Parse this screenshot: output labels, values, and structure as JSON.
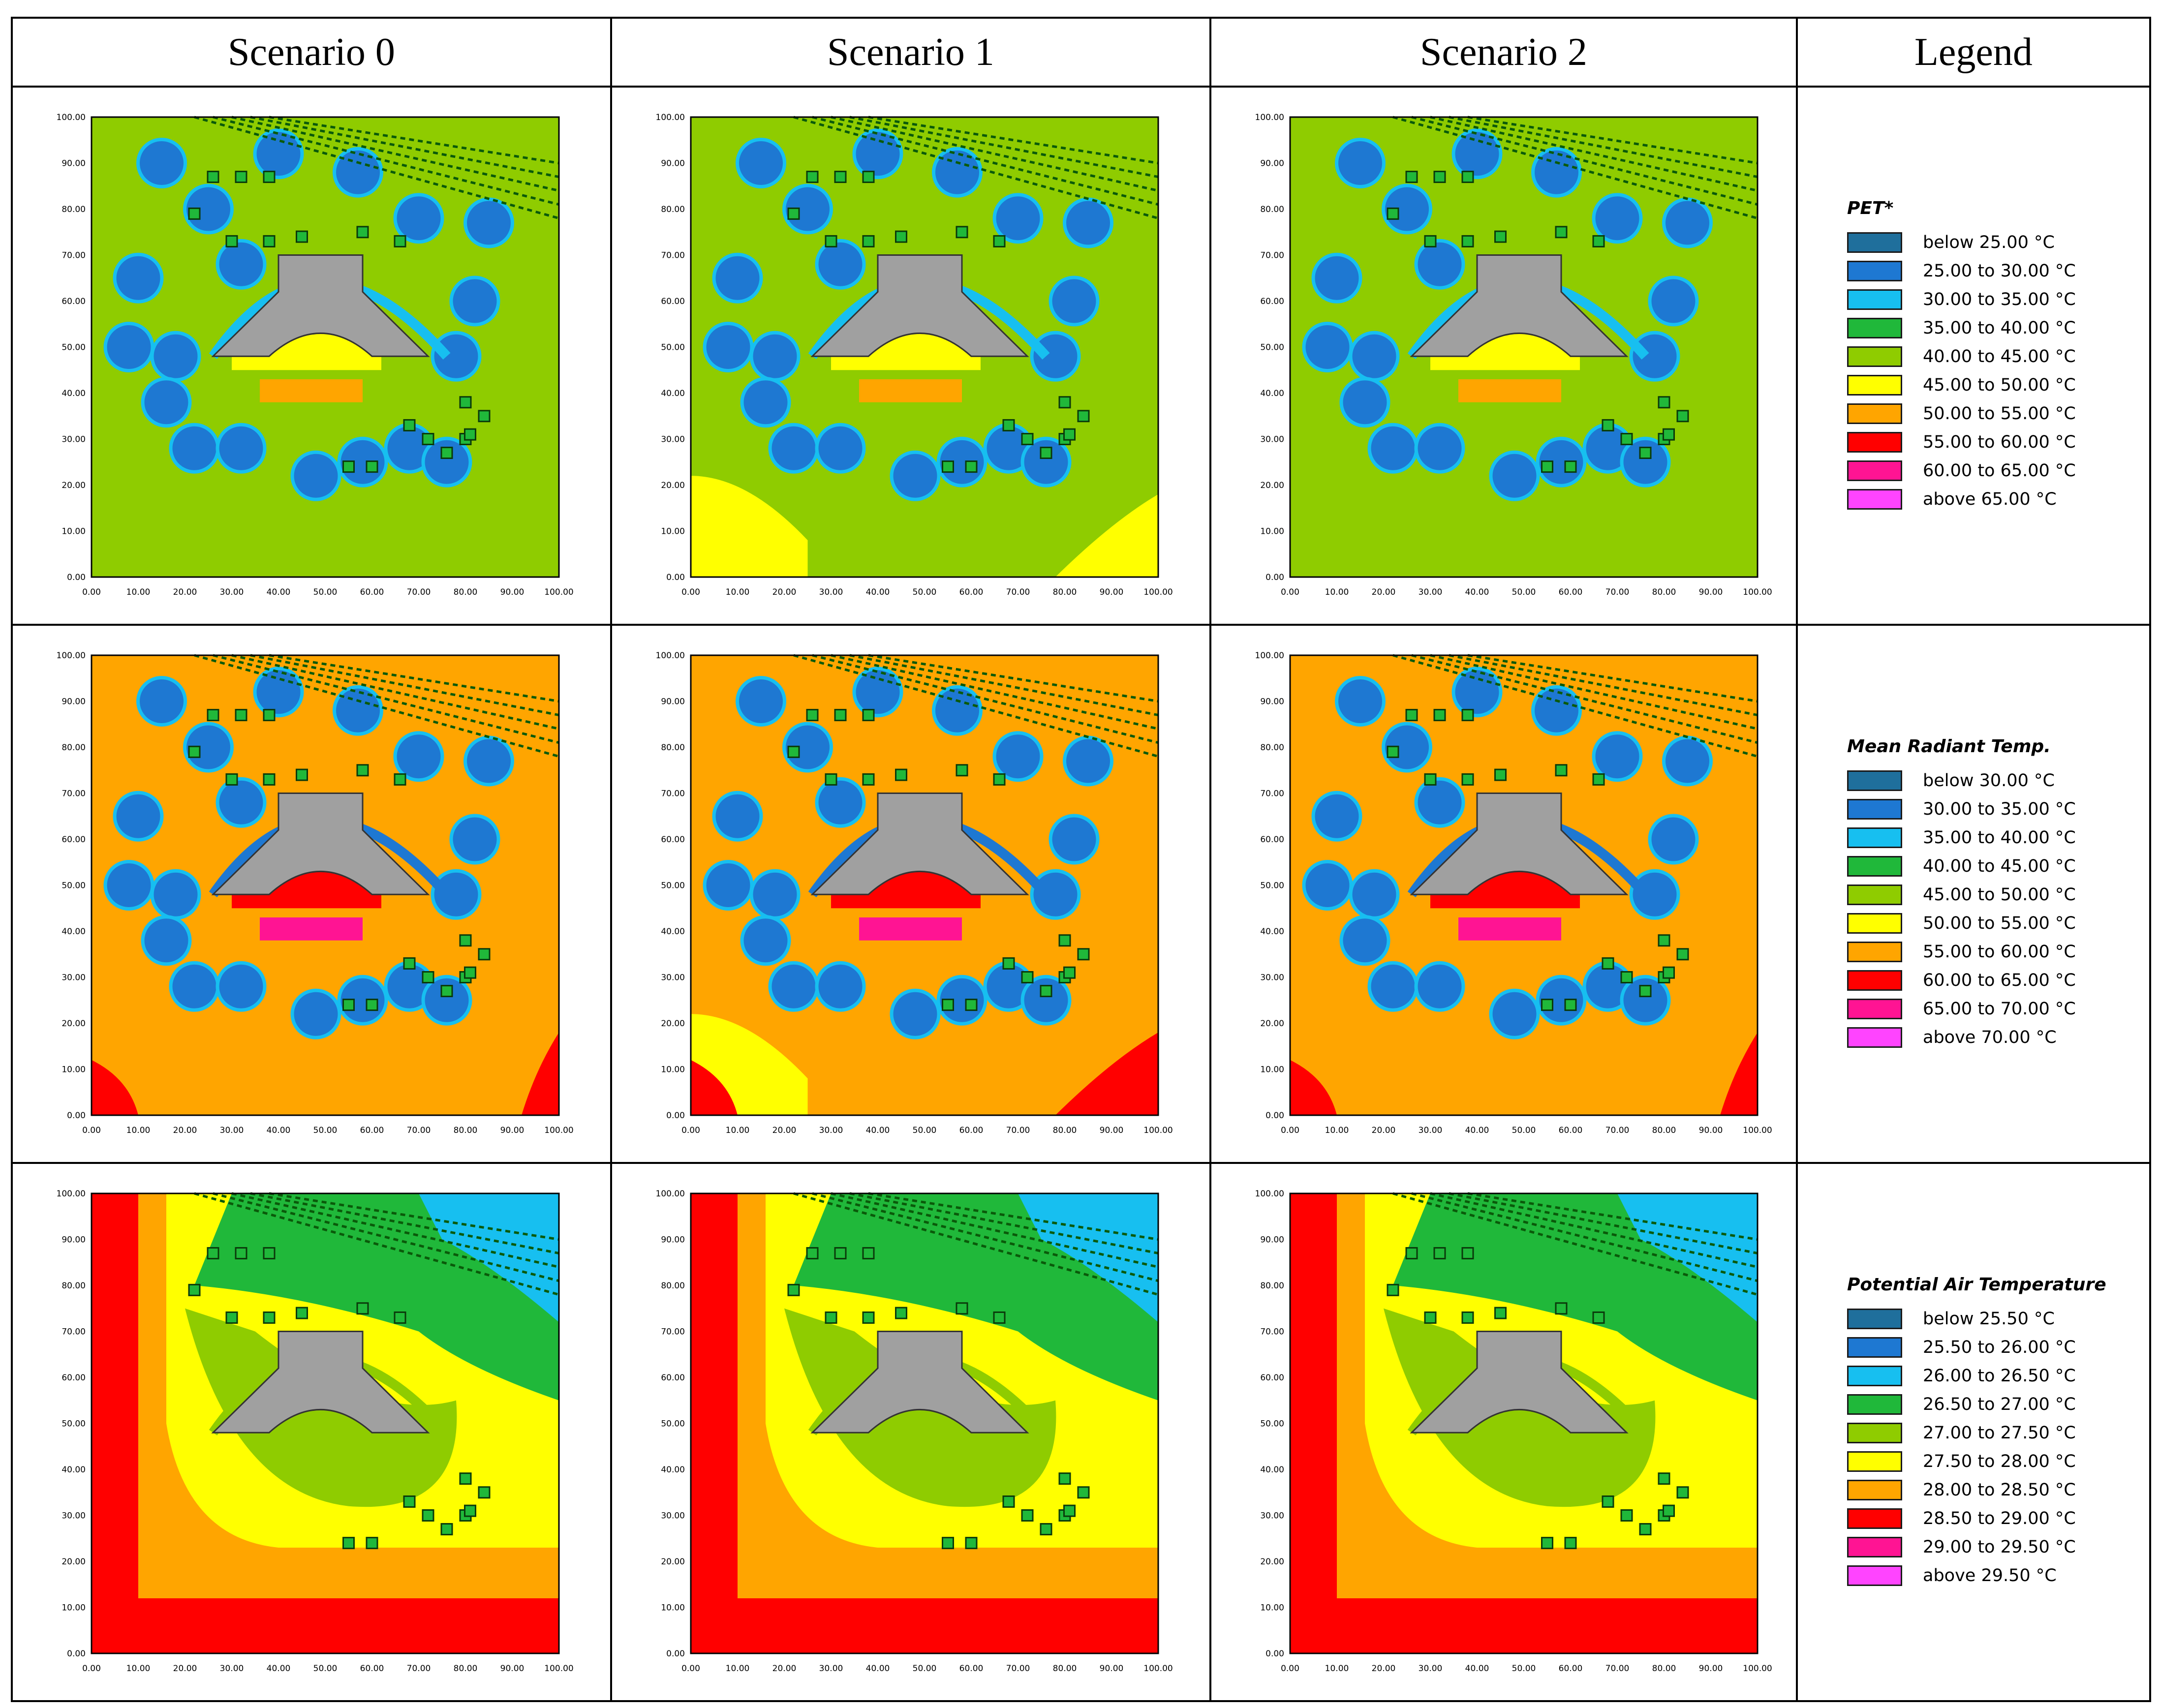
{
  "headers": [
    "Scenario 0",
    "Scenario 1",
    "Scenario 2",
    "Legend"
  ],
  "axis_ticks": [
    "0.00",
    "10.00",
    "20.00",
    "30.00",
    "40.00",
    "50.00",
    "60.00",
    "70.00",
    "80.00",
    "90.00",
    "100.00"
  ],
  "rows": [
    {
      "variable": "PET",
      "legend_title": "PET*",
      "legend": [
        {
          "label": "below 25.00 °C",
          "color": "#1f6f9c"
        },
        {
          "label": "25.00 to 30.00 °C",
          "color": "#1e78d2"
        },
        {
          "label": "30.00 to 35.00 °C",
          "color": "#17bff0"
        },
        {
          "label": "35.00 to 40.00 °C",
          "color": "#20b83a"
        },
        {
          "label": "40.00 to 45.00 °C",
          "color": "#8fcc00"
        },
        {
          "label": "45.00 to 50.00 °C",
          "color": "#ffff00"
        },
        {
          "label": "50.00 to 55.00 °C",
          "color": "#ffa500"
        },
        {
          "label": "55.00 to 60.00 °C",
          "color": "#ff0000"
        },
        {
          "label": "60.00 to 65.00 °C",
          "color": "#ff1493"
        },
        {
          "label": "above 65.00 °C",
          "color": "#ff44ff"
        }
      ],
      "background": "#8fcc00",
      "courtyard": "#ffff00",
      "hot": "#ffa500",
      "ring": "#17bff0"
    },
    {
      "variable": "MRT",
      "legend_title": "Mean Radiant Temp.",
      "legend": [
        {
          "label": "below 30.00 °C",
          "color": "#1f6f9c"
        },
        {
          "label": "30.00 to 35.00 °C",
          "color": "#1e78d2"
        },
        {
          "label": "35.00 to 40.00 °C",
          "color": "#17bff0"
        },
        {
          "label": "40.00 to 45.00 °C",
          "color": "#20b83a"
        },
        {
          "label": "45.00 to 50.00 °C",
          "color": "#8fcc00"
        },
        {
          "label": "50.00 to 55.00 °C",
          "color": "#ffff00"
        },
        {
          "label": "55.00 to 60.00 °C",
          "color": "#ffa500"
        },
        {
          "label": "60.00 to 65.00 °C",
          "color": "#ff0000"
        },
        {
          "label": "65.00 to 70.00 °C",
          "color": "#ff1493"
        },
        {
          "label": "above 70.00 °C",
          "color": "#ff44ff"
        }
      ],
      "background": "#ffa500",
      "courtyard": "#ff0000",
      "hot": "#ff1493",
      "ring": "#1e78d2"
    },
    {
      "variable": "Air",
      "legend_title": "Potential Air Temperature",
      "legend": [
        {
          "label": "below 25.50 °C",
          "color": "#1f6f9c"
        },
        {
          "label": "25.50 to 26.00 °C",
          "color": "#1e78d2"
        },
        {
          "label": "26.00 to 26.50 °C",
          "color": "#17bff0"
        },
        {
          "label": "26.50 to 27.00 °C",
          "color": "#20b83a"
        },
        {
          "label": "27.00 to 27.50 °C",
          "color": "#8fcc00"
        },
        {
          "label": "27.50 to 28.00 °C",
          "color": "#ffff00"
        },
        {
          "label": "28.00 to 28.50 °C",
          "color": "#ffa500"
        },
        {
          "label": "28.50 to 29.00 °C",
          "color": "#ff0000"
        },
        {
          "label": "29.00 to 29.50 °C",
          "color": "#ff1493"
        },
        {
          "label": "above 29.50 °C",
          "color": "#ff44ff"
        }
      ],
      "background": "#ffff00",
      "courtyard": "#ffa500",
      "hot": "#ff0000",
      "ring": "#8fcc00"
    }
  ],
  "colors": {
    "building": "#a0a0a0",
    "border": "#000000"
  }
}
